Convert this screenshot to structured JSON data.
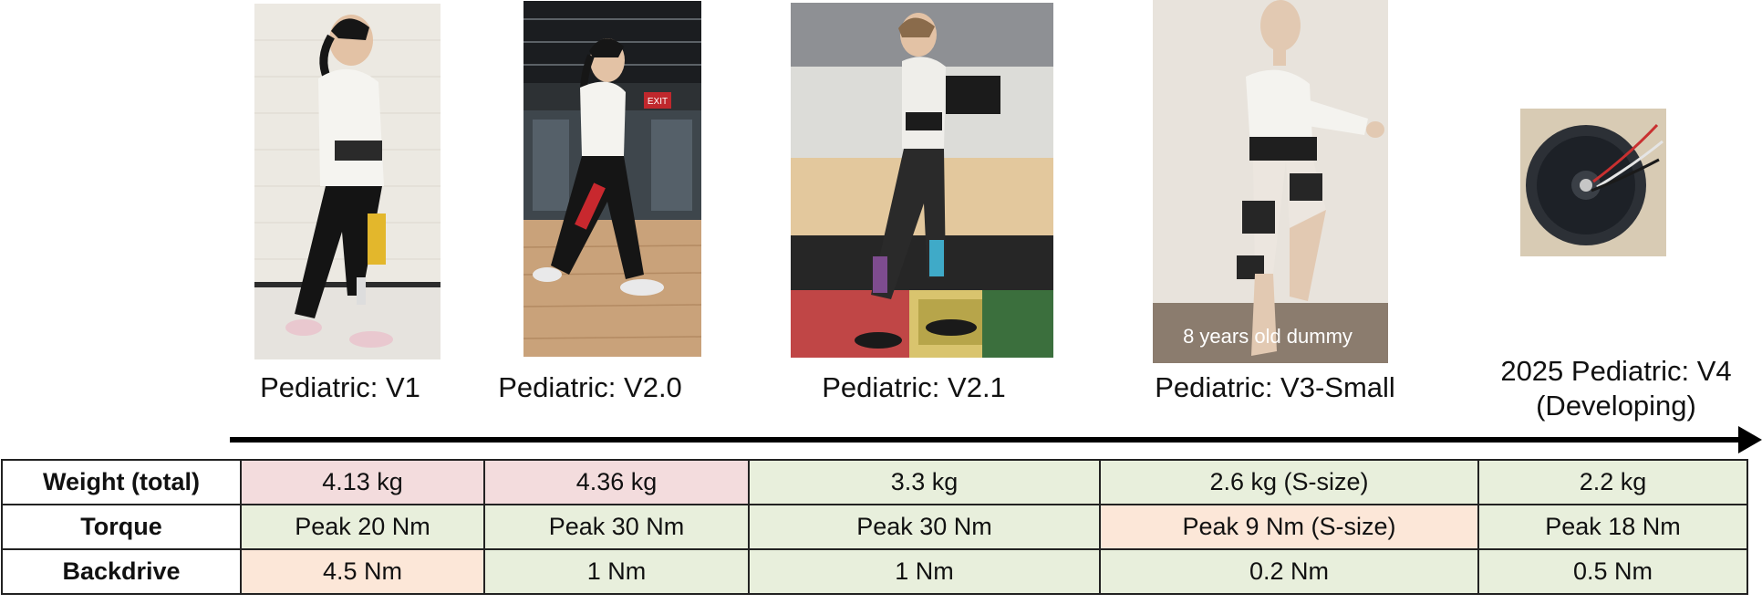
{
  "versions": [
    {
      "label": "Pediatric:  V1"
    },
    {
      "label": "Pediatric:  V2.0"
    },
    {
      "label": "Pediatric:  V2.1"
    },
    {
      "label": "Pediatric:  V3-Small"
    },
    {
      "label_line1": "2025 Pediatric:  V4",
      "label_line2": "(Developing)"
    }
  ],
  "photos": {
    "v2_0_sign": "EXIT",
    "v3_caption": "8 years old dummy"
  },
  "table": {
    "rows": [
      {
        "header": "Weight (total)",
        "cells": [
          "4.13 kg",
          "4.36 kg",
          "3.3 kg",
          "2.6 kg (S-size)",
          "2.2 kg"
        ]
      },
      {
        "header": "Torque",
        "cells": [
          "Peak 20 Nm",
          "Peak 30 Nm",
          "Peak 30 Nm",
          "Peak 9 Nm (S-size)",
          "Peak 18 Nm"
        ]
      },
      {
        "header": "Backdrive",
        "cells": [
          "4.5 Nm",
          "1 Nm",
          "1 Nm",
          "0.2 Nm",
          "0.5 Nm"
        ]
      }
    ]
  },
  "colors": {
    "good": "#e8efdc",
    "bad": "#f3dcdd",
    "warning": "#fce7d8"
  }
}
